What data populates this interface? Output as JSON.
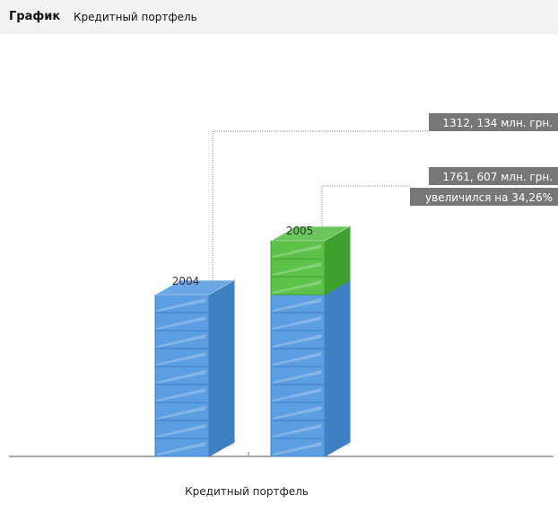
{
  "header": {
    "title": "График",
    "subtitle": "Кредитный портфель"
  },
  "chart_data": {
    "type": "bar",
    "categories": [
      "2004",
      "2005"
    ],
    "values": [
      1312.134,
      1761.607
    ],
    "value_labels": [
      "1312, 134 млн. грн.",
      "1761, 607 млн. грн."
    ],
    "annotation": "увеличился на 34,26%",
    "xlabel": "Кредитный портфель",
    "grid": false,
    "colors": {
      "base": "#5b9ee2",
      "base_dark": "#3f7fc4",
      "increase": "#5cc24a",
      "increase_dark": "#3ea02f",
      "tag_bg": "#777777"
    }
  }
}
